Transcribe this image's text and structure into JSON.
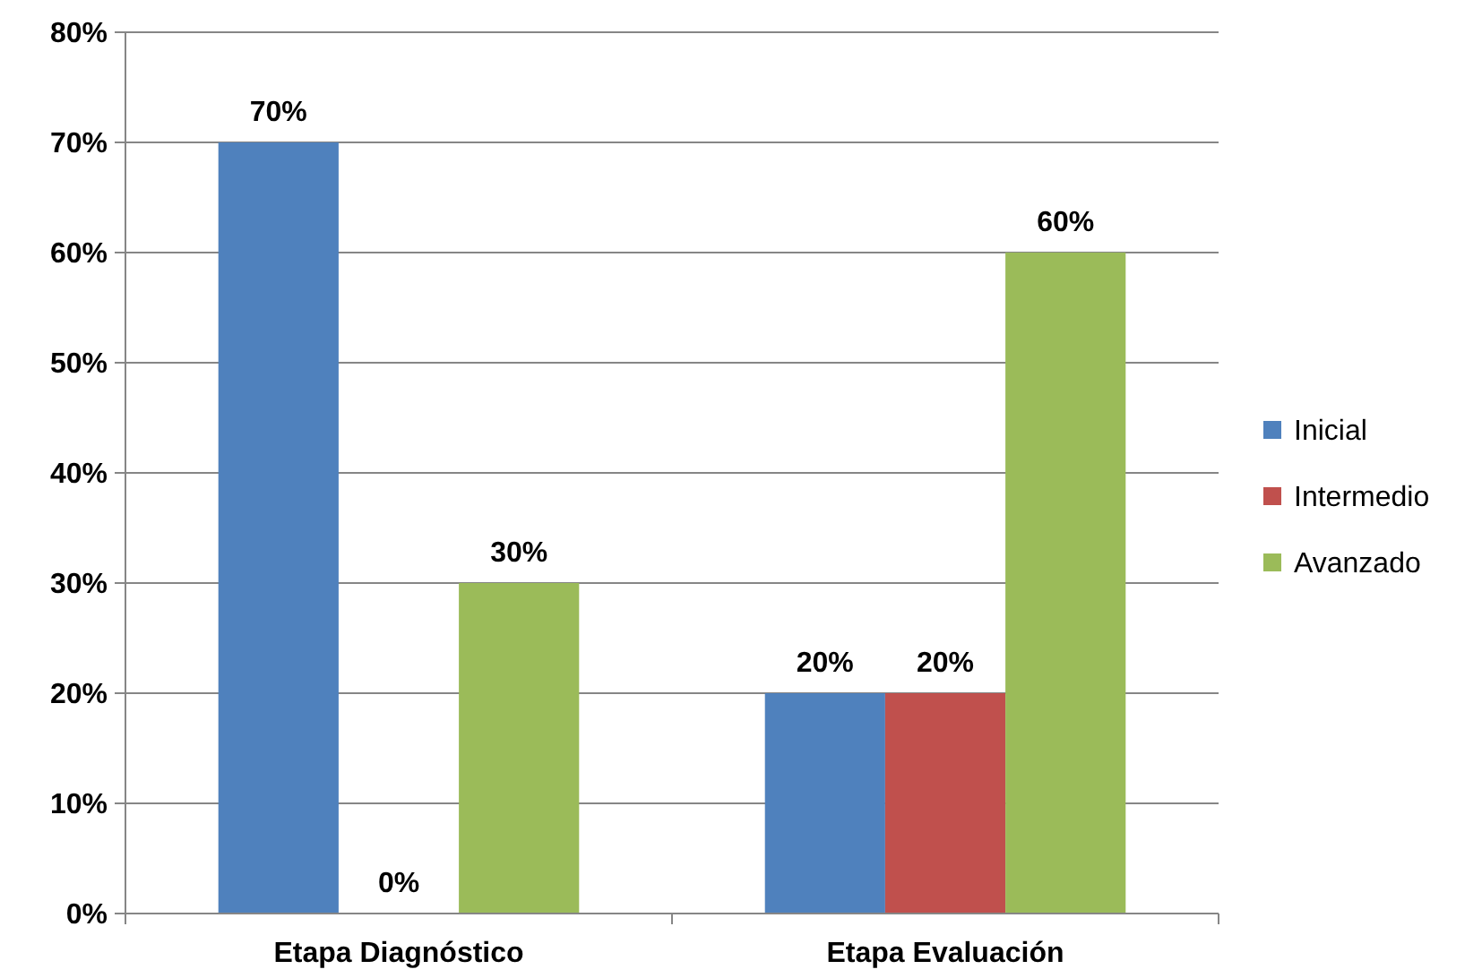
{
  "chart_data": {
    "type": "bar",
    "categories": [
      "Etapa Diagnóstico",
      "Etapa Evaluación"
    ],
    "series": [
      {
        "name": "Inicial",
        "color": "#4f81bd",
        "values": [
          70,
          20
        ],
        "value_labels": [
          "70%",
          "20%"
        ]
      },
      {
        "name": "Intermedio",
        "color": "#c0504d",
        "values": [
          0,
          20
        ],
        "value_labels": [
          "0%",
          "20%"
        ]
      },
      {
        "name": "Avanzado",
        "color": "#9bbb59",
        "values": [
          30,
          60
        ],
        "value_labels": [
          "30%",
          "60%"
        ]
      }
    ],
    "ylim": [
      0,
      80
    ],
    "yticks": [
      {
        "value": 0,
        "label": "0%"
      },
      {
        "value": 10,
        "label": "10%"
      },
      {
        "value": 20,
        "label": "20%"
      },
      {
        "value": 30,
        "label": "30%"
      },
      {
        "value": 40,
        "label": "40%"
      },
      {
        "value": 50,
        "label": "50%"
      },
      {
        "value": 60,
        "label": "60%"
      },
      {
        "value": 70,
        "label": "70%"
      },
      {
        "value": 80,
        "label": "80%"
      }
    ],
    "grid": "y",
    "legend": "right"
  }
}
